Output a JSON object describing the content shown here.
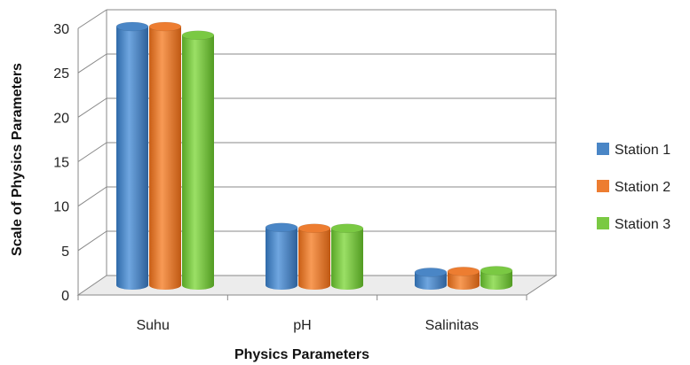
{
  "chart_data": {
    "type": "bar",
    "variant": "3d-cylinder",
    "categories": [
      "Suhu",
      "pH",
      "Salinitas"
    ],
    "series": [
      {
        "name": "Station 1",
        "values": [
          30,
          6.7,
          1.5
        ],
        "color": "#4a86c6"
      },
      {
        "name": "Station 2",
        "values": [
          30,
          6.6,
          1.6
        ],
        "color": "#ed7d31"
      },
      {
        "name": "Station 3",
        "values": [
          29,
          6.6,
          1.7
        ],
        "color": "#7ac943"
      }
    ],
    "yticks": [
      "0",
      "5",
      "10",
      "15",
      "20",
      "25",
      "30"
    ],
    "ylim": [
      0,
      30
    ],
    "xlabel": "Physics Parameters",
    "ylabel": "Scale of Physics Parameters",
    "grid": true,
    "legend_position": "right"
  }
}
